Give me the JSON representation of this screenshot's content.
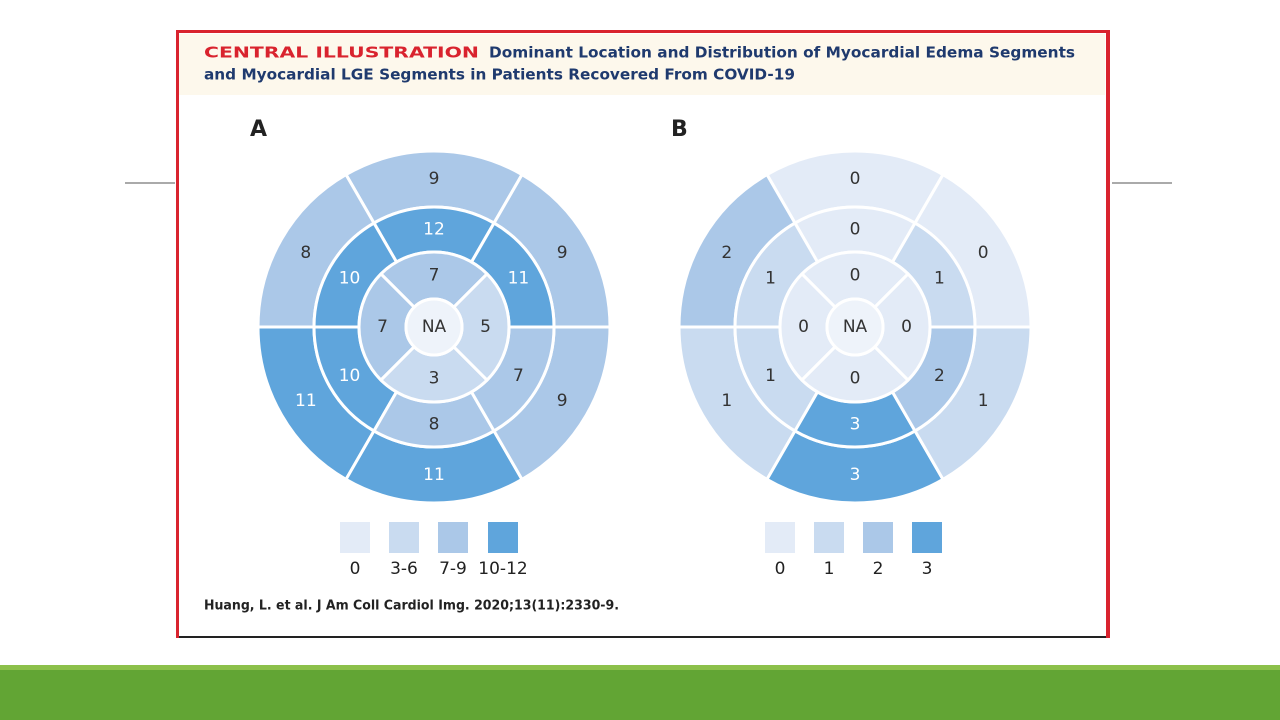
{
  "header": {
    "label": "CENTRAL ILLUSTRATION",
    "title_lines": [
      "Dominant Location and Distribution of Myocardial Edema Segments",
      "and Myocardial LGE Segments in Patients Recovered From COVID-19"
    ]
  },
  "panels": [
    {
      "label": "A",
      "basal": [
        {
          "value": 9,
          "color": "#abc8e8"
        },
        {
          "value": 8,
          "color": "#abc8e8"
        },
        {
          "value": 11,
          "color": "#5fa5dc"
        },
        {
          "value": 11,
          "color": "#5fa5dc"
        },
        {
          "value": 9,
          "color": "#abc8e8"
        },
        {
          "value": 9,
          "color": "#abc8e8"
        }
      ],
      "mid": [
        {
          "value": 12,
          "color": "#5fa5dc"
        },
        {
          "value": 10,
          "color": "#5fa5dc"
        },
        {
          "value": 10,
          "color": "#5fa5dc"
        },
        {
          "value": 8,
          "color": "#abc8e8"
        },
        {
          "value": 7,
          "color": "#abc8e8"
        },
        {
          "value": 11,
          "color": "#5fa5dc"
        }
      ],
      "apical": [
        {
          "value": 7,
          "color": "#abc8e8"
        },
        {
          "value": 7,
          "color": "#abc8e8"
        },
        {
          "value": 3,
          "color": "#c9dbf0"
        },
        {
          "value": 5,
          "color": "#c9dbf0"
        }
      ],
      "apex": {
        "value": "NA",
        "color": "#eef3fa"
      },
      "legend": [
        {
          "label": "0",
          "color": "#e3ebf7"
        },
        {
          "label": "3-6",
          "color": "#c9dbf0"
        },
        {
          "label": "7-9",
          "color": "#abc8e8"
        },
        {
          "label": "10-12",
          "color": "#5fa5dc"
        }
      ]
    },
    {
      "label": "B",
      "basal": [
        {
          "value": 0,
          "color": "#e3ebf7"
        },
        {
          "value": 2,
          "color": "#abc8e8"
        },
        {
          "value": 1,
          "color": "#c9dbf0"
        },
        {
          "value": 3,
          "color": "#5fa5dc"
        },
        {
          "value": 1,
          "color": "#c9dbf0"
        },
        {
          "value": 0,
          "color": "#e3ebf7"
        }
      ],
      "mid": [
        {
          "value": 0,
          "color": "#e3ebf7"
        },
        {
          "value": 1,
          "color": "#c9dbf0"
        },
        {
          "value": 1,
          "color": "#c9dbf0"
        },
        {
          "value": 3,
          "color": "#5fa5dc"
        },
        {
          "value": 2,
          "color": "#abc8e8"
        },
        {
          "value": 1,
          "color": "#c9dbf0"
        }
      ],
      "apical": [
        {
          "value": 0,
          "color": "#e3ebf7"
        },
        {
          "value": 0,
          "color": "#e3ebf7"
        },
        {
          "value": 0,
          "color": "#e3ebf7"
        },
        {
          "value": 0,
          "color": "#e3ebf7"
        }
      ],
      "apex": {
        "value": "NA",
        "color": "#eef3fa"
      },
      "legend": [
        {
          "label": "0",
          "color": "#e3ebf7"
        },
        {
          "label": "1",
          "color": "#c9dbf0"
        },
        {
          "label": "2",
          "color": "#abc8e8"
        },
        {
          "label": "3",
          "color": "#5fa5dc"
        }
      ]
    }
  ],
  "citation": "Huang, L. et al. J Am Coll Cardiol Img. 2020;13(11):2330-9."
}
